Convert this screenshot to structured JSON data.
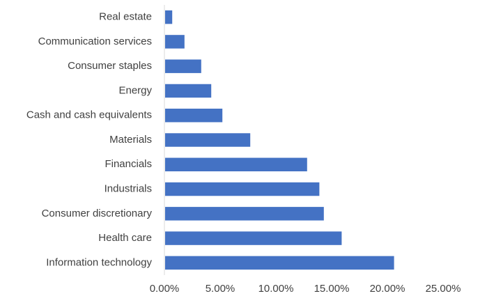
{
  "chart_data": {
    "type": "bar",
    "orientation": "horizontal",
    "title": "",
    "xlabel": "",
    "ylabel": "",
    "categories": [
      "Information technology",
      "Health care",
      "Consumer discretionary",
      "Industrials",
      "Financials",
      "Materials",
      "Cash and cash equivalents",
      "Energy",
      "Consumer staples",
      "Communication services",
      "Real estate"
    ],
    "values": [
      20.6,
      15.9,
      14.3,
      13.9,
      12.8,
      7.7,
      5.2,
      4.2,
      3.3,
      1.8,
      0.7
    ],
    "xlim": [
      0,
      25
    ],
    "x_ticks": [
      0,
      5,
      10,
      15,
      20,
      25
    ],
    "x_tick_labels": [
      "0.00%",
      "5.00%",
      "10.00%",
      "15.00%",
      "20.00%",
      "25.00%"
    ],
    "grid": false,
    "legend": "none",
    "colors": {
      "bar": "#4472C4",
      "axis": "#D9D9D9",
      "text": "#404040"
    }
  }
}
